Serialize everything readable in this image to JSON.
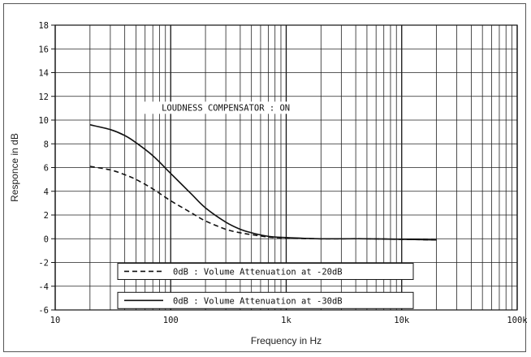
{
  "chart_data": {
    "type": "line",
    "title": "LOUDNESS COMPENSATOR : ON",
    "xlabel": "Frequency in Hz",
    "ylabel": "Responce in dB",
    "xscale": "log",
    "xlim": [
      10,
      100000
    ],
    "ylim": [
      -6,
      18
    ],
    "xticks": [
      10,
      100,
      1000,
      10000,
      100000
    ],
    "xtick_labels": [
      "10",
      "100",
      "1k",
      "10k",
      "100k"
    ],
    "yticks": [
      -6,
      -4,
      -2,
      0,
      2,
      4,
      6,
      8,
      10,
      12,
      14,
      16,
      18
    ],
    "ytick_labels": [
      "-6",
      "-4",
      "-2",
      "0",
      "2",
      "4",
      "6",
      "8",
      "10",
      "12",
      "14",
      "16",
      "18"
    ],
    "grid": true,
    "legend_position": "bottom-left",
    "series": [
      {
        "name": "0dB : Volume Attenuation at -20dB",
        "style": "dashed",
        "color": "#111111",
        "x": [
          20,
          30,
          40,
          50,
          70,
          100,
          150,
          200,
          300,
          400,
          500,
          700,
          1000,
          2000,
          5000,
          10000,
          20000
        ],
        "y": [
          6.1,
          5.8,
          5.4,
          5.0,
          4.2,
          3.2,
          2.2,
          1.5,
          0.8,
          0.5,
          0.35,
          0.15,
          0.05,
          0.0,
          0.0,
          -0.05,
          -0.1
        ]
      },
      {
        "name": "0dB : Volume Attenuation at -30dB",
        "style": "solid",
        "color": "#111111",
        "x": [
          20,
          30,
          40,
          50,
          70,
          100,
          150,
          200,
          300,
          400,
          500,
          700,
          1000,
          2000,
          5000,
          10000,
          20000
        ],
        "y": [
          9.6,
          9.2,
          8.7,
          8.1,
          7.0,
          5.5,
          3.8,
          2.6,
          1.4,
          0.8,
          0.5,
          0.2,
          0.1,
          0.0,
          0.0,
          -0.05,
          -0.1
        ]
      }
    ]
  }
}
